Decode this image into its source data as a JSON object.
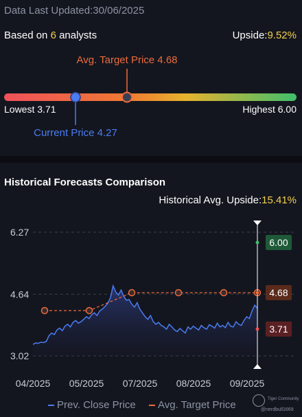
{
  "header": {
    "updated_label": "Data Last Updated:30/06/2025"
  },
  "summary": {
    "based_prefix": "Based on ",
    "analyst_count": "6",
    "based_suffix": " analysts",
    "upside_label": "Upside:",
    "upside_value": "9.52%"
  },
  "gauge": {
    "target_label": "Avg. Target Price 4.68",
    "lowest_label": "Lowest 3.71",
    "highest_label": "Highest 6.00",
    "current_label": "Current Price 4.27",
    "low": 3.71,
    "high": 6.0,
    "current": 4.27,
    "target": 4.68
  },
  "history": {
    "title": "Historical Forecasts Comparison",
    "avg_upside_label": "Historical Avg. Upside:",
    "avg_upside_value": "15.41%"
  },
  "colors": {
    "accent_yellow": "#f5d14b",
    "target_orange": "#ec6c3d",
    "current_blue": "#4a7cf3",
    "high_green": "#1f5a38",
    "low_red": "#5a2024"
  },
  "chart_data": {
    "type": "line",
    "x_ticks": [
      "04/2025",
      "05/2025",
      "07/2025",
      "08/2025",
      "09/2025"
    ],
    "y_ticks": [
      "6.27",
      "4.64",
      "3.02"
    ],
    "ylim": [
      3.02,
      6.27
    ],
    "series": [
      {
        "name": "Prev. Close Price",
        "values": [
          3.32,
          3.36,
          3.35,
          3.38,
          3.37,
          3.4,
          3.55,
          3.62,
          3.58,
          3.7,
          3.75,
          3.68,
          3.8,
          3.85,
          3.78,
          3.9,
          3.95,
          3.88,
          3.92,
          3.98,
          4.05,
          4.0,
          4.1,
          4.15,
          4.08,
          4.2,
          4.25,
          4.32,
          4.4,
          4.55,
          4.86,
          4.7,
          4.62,
          4.75,
          4.58,
          4.48,
          4.5,
          4.38,
          4.3,
          4.42,
          4.25,
          4.15,
          4.05,
          3.98,
          4.08,
          3.92,
          3.85,
          3.9,
          3.82,
          3.78,
          3.72,
          3.85,
          3.78,
          3.7,
          3.66,
          3.74,
          3.68,
          3.62,
          3.78,
          3.72,
          3.8,
          3.75,
          3.7,
          3.82,
          3.76,
          3.72,
          3.84,
          3.8,
          3.75,
          3.88,
          3.78,
          3.82,
          3.76,
          3.9,
          3.8,
          3.78,
          3.92,
          3.85,
          3.82,
          3.95,
          4.05,
          4.0,
          4.2,
          4.35,
          4.27
        ]
      },
      {
        "name": "Avg. Target Price",
        "values": [
          4.21,
          4.21,
          4.68,
          4.68,
          4.68,
          4.68
        ]
      }
    ],
    "latest": {
      "high": "6.00",
      "target": "4.68",
      "low": "3.71"
    }
  },
  "legend": {
    "close_label": "Prev. Close Price",
    "target_label": "Avg. Target Price"
  },
  "watermark": {
    "brand": "Tiger Community",
    "user": "@nerdbull1669"
  }
}
